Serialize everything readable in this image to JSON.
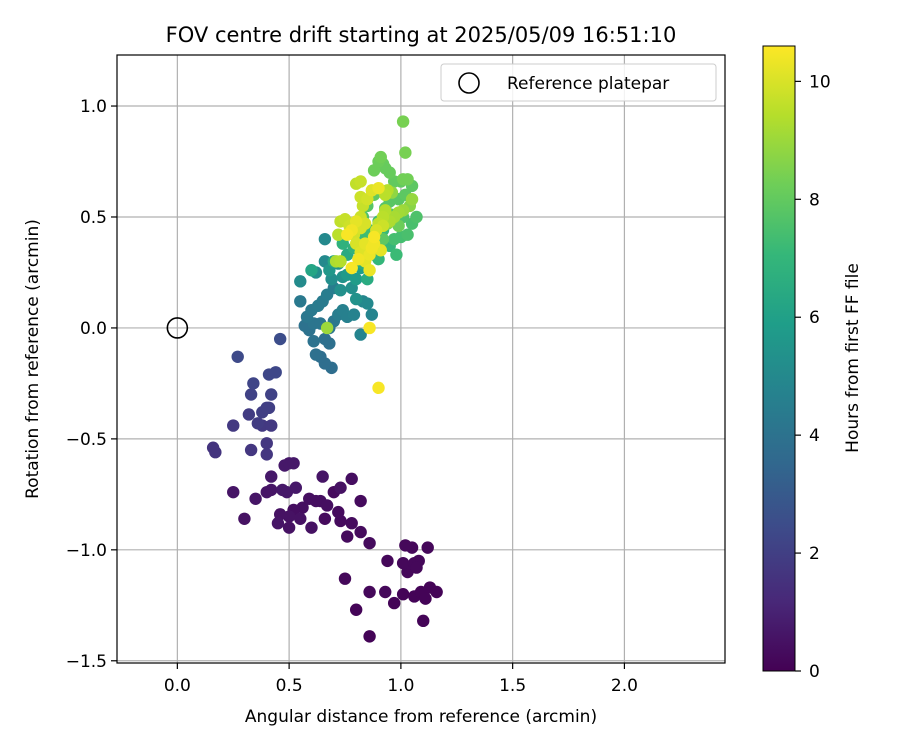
{
  "chart_data": {
    "type": "scatter",
    "title": "FOV centre drift starting at 2025/05/09 16:51:10",
    "xlabel": "Angular distance from reference (arcmin)",
    "ylabel": "Rotation from reference (arcmin)",
    "xlim": [
      -0.27,
      2.45
    ],
    "ylim": [
      -1.51,
      1.23
    ],
    "xticks": [
      0.0,
      0.5,
      1.0,
      1.5,
      2.0
    ],
    "xtick_labels": [
      "0.0",
      "0.5",
      "1.0",
      "1.5",
      "2.0"
    ],
    "yticks": [
      1.0,
      0.5,
      0.0,
      -0.5,
      -1.0,
      -1.5
    ],
    "ytick_labels": [
      "1.0",
      "0.5",
      "0.0",
      "−0.5",
      "−1.0",
      "−1.5"
    ],
    "grid": true,
    "legend": {
      "position": "top-right",
      "entries": [
        "Reference platepar"
      ]
    },
    "reference_point": {
      "label": "Reference platepar",
      "x": 0.0,
      "y": 0.0
    },
    "colorbar": {
      "label": "Hours from first FF file",
      "range": [
        0,
        10.6
      ],
      "ticks": [
        0,
        2,
        4,
        6,
        8,
        10
      ],
      "tick_labels": [
        "0",
        "2",
        "4",
        "6",
        "8",
        "10"
      ],
      "colormap": "viridis"
    },
    "colormap_stops": [
      "#440154",
      "#482878",
      "#3e4989",
      "#31688e",
      "#26828e",
      "#1f9e89",
      "#35b779",
      "#6ece58",
      "#b5de2b",
      "#fde725"
    ],
    "series": [
      {
        "points": [
          [
            0.86,
            -1.39
          ],
          [
            0.97,
            -1.24
          ],
          [
            0.8,
            -1.27
          ],
          [
            1.1,
            -1.32
          ],
          [
            1.06,
            -1.21
          ],
          [
            1.01,
            -1.2
          ],
          [
            1.13,
            -1.17
          ],
          [
            1.16,
            -1.19
          ],
          [
            1.09,
            -1.19
          ],
          [
            1.11,
            -1.22
          ],
          [
            0.93,
            -1.19
          ],
          [
            0.86,
            -1.19
          ],
          [
            0.75,
            -1.13
          ],
          [
            0.94,
            -1.05
          ],
          [
            1.03,
            -1.1
          ],
          [
            1.04,
            -1.08
          ],
          [
            1.06,
            -1.06
          ],
          [
            1.08,
            -1.05
          ],
          [
            1.01,
            -1.06
          ],
          [
            1.02,
            -0.98
          ],
          [
            1.05,
            -0.99
          ],
          [
            1.12,
            -0.99
          ],
          [
            1.07,
            -1.08
          ],
          [
            0.86,
            -0.97
          ],
          [
            0.82,
            -0.92
          ],
          [
            0.76,
            -0.94
          ],
          [
            0.78,
            -0.88
          ],
          [
            0.73,
            -0.87
          ],
          [
            0.72,
            -0.83
          ],
          [
            0.66,
            -0.86
          ],
          [
            0.64,
            -0.78
          ],
          [
            0.59,
            -0.77
          ],
          [
            0.62,
            -0.78
          ],
          [
            0.56,
            -0.81
          ],
          [
            0.52,
            -0.82
          ],
          [
            0.5,
            -0.85
          ],
          [
            0.55,
            -0.86
          ],
          [
            0.5,
            -0.9
          ],
          [
            0.46,
            -0.84
          ],
          [
            0.3,
            -0.86
          ],
          [
            0.25,
            -0.74
          ],
          [
            0.35,
            -0.77
          ],
          [
            0.4,
            -0.74
          ],
          [
            0.42,
            -0.73
          ],
          [
            0.47,
            -0.73
          ],
          [
            0.49,
            -0.74
          ],
          [
            0.53,
            -0.72
          ],
          [
            0.42,
            -0.67
          ],
          [
            0.48,
            -0.62
          ],
          [
            0.5,
            -0.61
          ],
          [
            0.52,
            -0.61
          ],
          [
            0.65,
            -0.67
          ],
          [
            0.7,
            -0.74
          ],
          [
            0.73,
            -0.72
          ],
          [
            0.78,
            -0.68
          ],
          [
            0.82,
            -0.78
          ],
          [
            0.67,
            -0.8
          ],
          [
            0.6,
            -0.9
          ],
          [
            0.45,
            -0.88
          ]
        ],
        "hours": [
          0.1,
          0.1,
          0.1,
          0.1,
          0.1,
          0.1,
          0.1,
          0.1,
          0.1,
          0.1,
          0.2,
          0.2,
          0.2,
          0.2,
          0.2,
          0.2,
          0.2,
          0.2,
          0.2,
          0.2,
          0.2,
          0.2,
          0.2,
          0.3,
          0.3,
          0.3,
          0.3,
          0.3,
          0.3,
          0.3,
          0.4,
          0.4,
          0.4,
          0.4,
          0.4,
          0.5,
          0.5,
          0.5,
          0.5,
          0.5,
          0.6,
          0.6,
          0.6,
          0.6,
          0.7,
          0.7,
          0.7,
          0.7,
          0.7,
          0.7,
          0.7,
          0.6,
          0.3,
          0.5,
          0.4,
          0.3,
          0.4,
          0.5,
          0.6
        ]
      },
      {
        "points": [
          [
            0.16,
            -0.54
          ],
          [
            0.17,
            -0.56
          ],
          [
            0.33,
            -0.55
          ],
          [
            0.4,
            -0.52
          ],
          [
            0.4,
            -0.57
          ],
          [
            0.25,
            -0.44
          ],
          [
            0.38,
            -0.44
          ],
          [
            0.42,
            -0.44
          ],
          [
            0.32,
            -0.39
          ],
          [
            0.36,
            -0.43
          ],
          [
            0.38,
            -0.38
          ],
          [
            0.41,
            -0.36
          ],
          [
            0.4,
            -0.36
          ],
          [
            0.33,
            -0.3
          ],
          [
            0.42,
            -0.3
          ],
          [
            0.34,
            -0.25
          ],
          [
            0.41,
            -0.21
          ],
          [
            0.44,
            -0.2
          ],
          [
            0.27,
            -0.13
          ],
          [
            0.46,
            -0.05
          ]
        ],
        "hours": [
          1.6,
          1.6,
          1.7,
          1.7,
          1.7,
          1.8,
          1.8,
          1.8,
          1.9,
          1.9,
          2.0,
          2.0,
          2.0,
          2.1,
          2.1,
          2.2,
          2.3,
          2.3,
          2.4,
          2.5
        ]
      },
      {
        "points": [
          [
            0.69,
            -0.18
          ],
          [
            0.66,
            -0.16
          ],
          [
            0.64,
            -0.13
          ],
          [
            0.62,
            -0.12
          ],
          [
            0.68,
            -0.07
          ],
          [
            0.66,
            -0.05
          ],
          [
            0.61,
            -0.06
          ],
          [
            0.59,
            -0.01
          ],
          [
            0.57,
            0.01
          ],
          [
            0.61,
            0.02
          ],
          [
            0.64,
            0.02
          ],
          [
            0.68,
            0.0
          ],
          [
            0.7,
            0.03
          ],
          [
            0.58,
            0.05
          ],
          [
            0.55,
            0.12
          ],
          [
            0.6,
            0.08
          ],
          [
            0.63,
            0.1
          ],
          [
            0.65,
            0.12
          ],
          [
            0.67,
            0.15
          ],
          [
            0.7,
            0.18
          ],
          [
            0.72,
            0.06
          ],
          [
            0.74,
            0.08
          ],
          [
            0.76,
            0.05
          ],
          [
            0.79,
            0.06
          ],
          [
            0.82,
            -0.03
          ],
          [
            0.87,
            0.06
          ],
          [
            0.83,
            0.12
          ],
          [
            0.85,
            0.11
          ],
          [
            0.66,
            0.3
          ],
          [
            0.66,
            0.4
          ],
          [
            0.55,
            0.21
          ],
          [
            0.62,
            0.25
          ],
          [
            0.69,
            0.22
          ],
          [
            0.73,
            0.17
          ],
          [
            0.78,
            0.18
          ],
          [
            0.8,
            0.13
          ],
          [
            0.74,
            0.23
          ],
          [
            0.72,
            0.29
          ],
          [
            0.68,
            0.26
          ],
          [
            0.76,
            0.24
          ],
          [
            0.8,
            0.22
          ],
          [
            0.82,
            0.27
          ]
        ],
        "hours": [
          3.8,
          3.8,
          3.8,
          3.9,
          3.9,
          3.9,
          4.0,
          4.0,
          4.0,
          4.1,
          4.1,
          4.1,
          4.2,
          4.2,
          4.3,
          4.3,
          4.4,
          4.4,
          4.5,
          4.5,
          4.5,
          4.6,
          4.6,
          4.7,
          4.8,
          4.8,
          4.9,
          5.0,
          5.0,
          5.0,
          5.1,
          5.2,
          5.2,
          5.3,
          5.3,
          5.4,
          5.4,
          5.5,
          5.6,
          5.7,
          5.8,
          5.9
        ]
      },
      {
        "points": [
          [
            0.6,
            0.26
          ],
          [
            0.7,
            0.3
          ],
          [
            0.76,
            0.33
          ],
          [
            0.83,
            0.29
          ],
          [
            0.85,
            0.22
          ],
          [
            0.88,
            0.33
          ],
          [
            0.87,
            0.38
          ],
          [
            0.74,
            0.38
          ],
          [
            0.79,
            0.36
          ],
          [
            0.81,
            0.42
          ],
          [
            0.9,
            0.31
          ],
          [
            0.95,
            0.37
          ],
          [
            0.92,
            0.44
          ],
          [
            0.98,
            0.33
          ],
          [
            0.83,
            0.4
          ],
          [
            0.86,
            0.44
          ],
          [
            0.9,
            0.48
          ],
          [
            0.97,
            0.4
          ],
          [
            1.0,
            0.41
          ],
          [
            1.03,
            0.42
          ],
          [
            1.05,
            0.47
          ],
          [
            1.07,
            0.5
          ],
          [
            1.01,
            0.5
          ],
          [
            0.96,
            0.51
          ],
          [
            0.93,
            0.54
          ],
          [
            0.95,
            0.57
          ],
          [
            0.99,
            0.58
          ],
          [
            1.02,
            0.6
          ],
          [
            1.05,
            0.64
          ],
          [
            1.0,
            0.66
          ],
          [
            0.97,
            0.66
          ],
          [
            0.95,
            0.7
          ],
          [
            0.93,
            0.72
          ],
          [
            0.92,
            0.74
          ],
          [
            0.88,
            0.71
          ],
          [
            0.9,
            0.75
          ],
          [
            0.91,
            0.77
          ],
          [
            1.01,
            0.67
          ],
          [
            1.03,
            0.67
          ],
          [
            1.02,
            0.79
          ],
          [
            1.01,
            0.93
          ],
          [
            0.88,
            0.6
          ],
          [
            0.85,
            0.55
          ],
          [
            0.83,
            0.5
          ],
          [
            0.99,
            0.46
          ],
          [
            0.92,
            0.4
          ],
          [
            0.94,
            0.47
          ],
          [
            1.04,
            0.55
          ],
          [
            1.05,
            0.58
          ],
          [
            0.96,
            0.61
          ]
        ],
        "hours": [
          6.2,
          6.3,
          6.4,
          6.5,
          6.5,
          6.6,
          6.7,
          6.8,
          6.8,
          6.9,
          7.0,
          7.0,
          7.1,
          7.2,
          7.2,
          7.3,
          7.3,
          7.4,
          7.4,
          7.5,
          7.5,
          7.6,
          7.6,
          7.7,
          7.7,
          7.8,
          7.8,
          7.9,
          7.9,
          8.0,
          8.0,
          8.1,
          8.1,
          8.1,
          8.2,
          8.2,
          8.3,
          8.3,
          8.3,
          8.4,
          8.4,
          8.0,
          7.8,
          7.6,
          8.2,
          7.9,
          8.5,
          8.7,
          8.9,
          8.8
        ]
      },
      {
        "points": [
          [
            0.67,
            0.0
          ],
          [
            0.71,
            0.3
          ],
          [
            0.73,
            0.3
          ],
          [
            0.72,
            0.42
          ],
          [
            0.73,
            0.48
          ],
          [
            0.75,
            0.49
          ],
          [
            0.77,
            0.46
          ],
          [
            0.79,
            0.42
          ],
          [
            0.8,
            0.38
          ],
          [
            0.82,
            0.34
          ],
          [
            0.84,
            0.3
          ],
          [
            0.86,
            0.33
          ],
          [
            0.87,
            0.36
          ],
          [
            0.88,
            0.41
          ],
          [
            0.89,
            0.44
          ],
          [
            0.9,
            0.47
          ],
          [
            0.92,
            0.5
          ],
          [
            0.93,
            0.53
          ],
          [
            0.95,
            0.48
          ],
          [
            0.97,
            0.5
          ],
          [
            0.99,
            0.52
          ],
          [
            1.01,
            0.53
          ],
          [
            0.82,
            0.5
          ],
          [
            0.84,
            0.47
          ],
          [
            0.8,
            0.48
          ],
          [
            0.78,
            0.44
          ],
          [
            0.76,
            0.42
          ],
          [
            0.83,
            0.55
          ],
          [
            0.82,
            0.59
          ],
          [
            0.8,
            0.65
          ],
          [
            0.82,
            0.66
          ],
          [
            0.85,
            0.58
          ],
          [
            0.87,
            0.62
          ],
          [
            0.9,
            0.63
          ],
          [
            0.93,
            0.6
          ],
          [
            0.94,
            0.62
          ],
          [
            0.88,
            0.38
          ],
          [
            0.91,
            0.35
          ],
          [
            0.92,
            0.46
          ],
          [
            0.86,
            0.26
          ],
          [
            0.78,
            0.27
          ],
          [
            0.81,
            0.31
          ],
          [
            0.84,
            0.38
          ],
          [
            0.82,
            0.45
          ],
          [
            0.86,
            0.0
          ],
          [
            0.9,
            -0.27
          ]
        ],
        "hours": [
          9.0,
          9.3,
          9.4,
          9.5,
          9.6,
          9.7,
          9.8,
          9.9,
          10.0,
          10.1,
          10.2,
          10.3,
          10.4,
          10.5,
          10.0,
          9.6,
          9.5,
          9.4,
          9.3,
          9.2,
          9.1,
          9.0,
          9.8,
          10.0,
          10.2,
          10.4,
          10.5,
          9.7,
          9.8,
          9.6,
          9.7,
          9.9,
          10.1,
          10.3,
          9.5,
          9.4,
          10.4,
          10.2,
          9.8,
          10.3,
          10.5,
          10.4,
          10.2,
          10.0,
          10.5,
          10.5
        ]
      }
    ]
  }
}
